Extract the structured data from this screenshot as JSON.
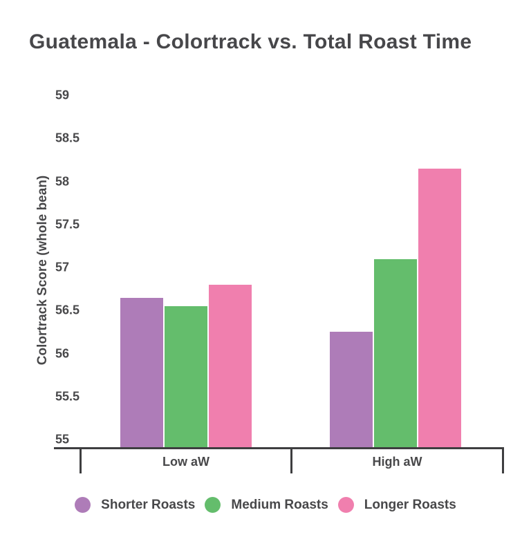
{
  "title": "Guatemala - Colortrack vs. Total Roast Time",
  "colors": {
    "background": "#ffffff",
    "text": "#48484a",
    "title_text": "#47474a",
    "axis": "#3e3e40",
    "purple": "#ae7cb8",
    "green": "#64bd6c",
    "pink": "#f07fae"
  },
  "chart_data": {
    "type": "bar",
    "title": "Guatemala - Colortrack vs. Total Roast Time",
    "categories": [
      "Low aW",
      "High aW"
    ],
    "series": [
      {
        "name": "Shorter Roasts",
        "color": "#ae7cb8",
        "values": [
          56.65,
          56.25
        ]
      },
      {
        "name": "Medium Roasts",
        "color": "#64bd6c",
        "values": [
          56.55,
          57.1
        ]
      },
      {
        "name": "Longer Roasts",
        "color": "#f07fae",
        "values": [
          56.8,
          58.15
        ]
      }
    ],
    "xlabel": "",
    "ylabel": "Colortrack Score (whole bean)",
    "ylim": [
      55,
      59
    ],
    "yticks": [
      55,
      55.5,
      56,
      56.5,
      57,
      57.5,
      58,
      58.5,
      59
    ],
    "grid": false,
    "legend_position": "bottom"
  },
  "legend": {
    "items": [
      "Shorter Roasts",
      "Medium Roasts",
      "Longer Roasts"
    ]
  }
}
